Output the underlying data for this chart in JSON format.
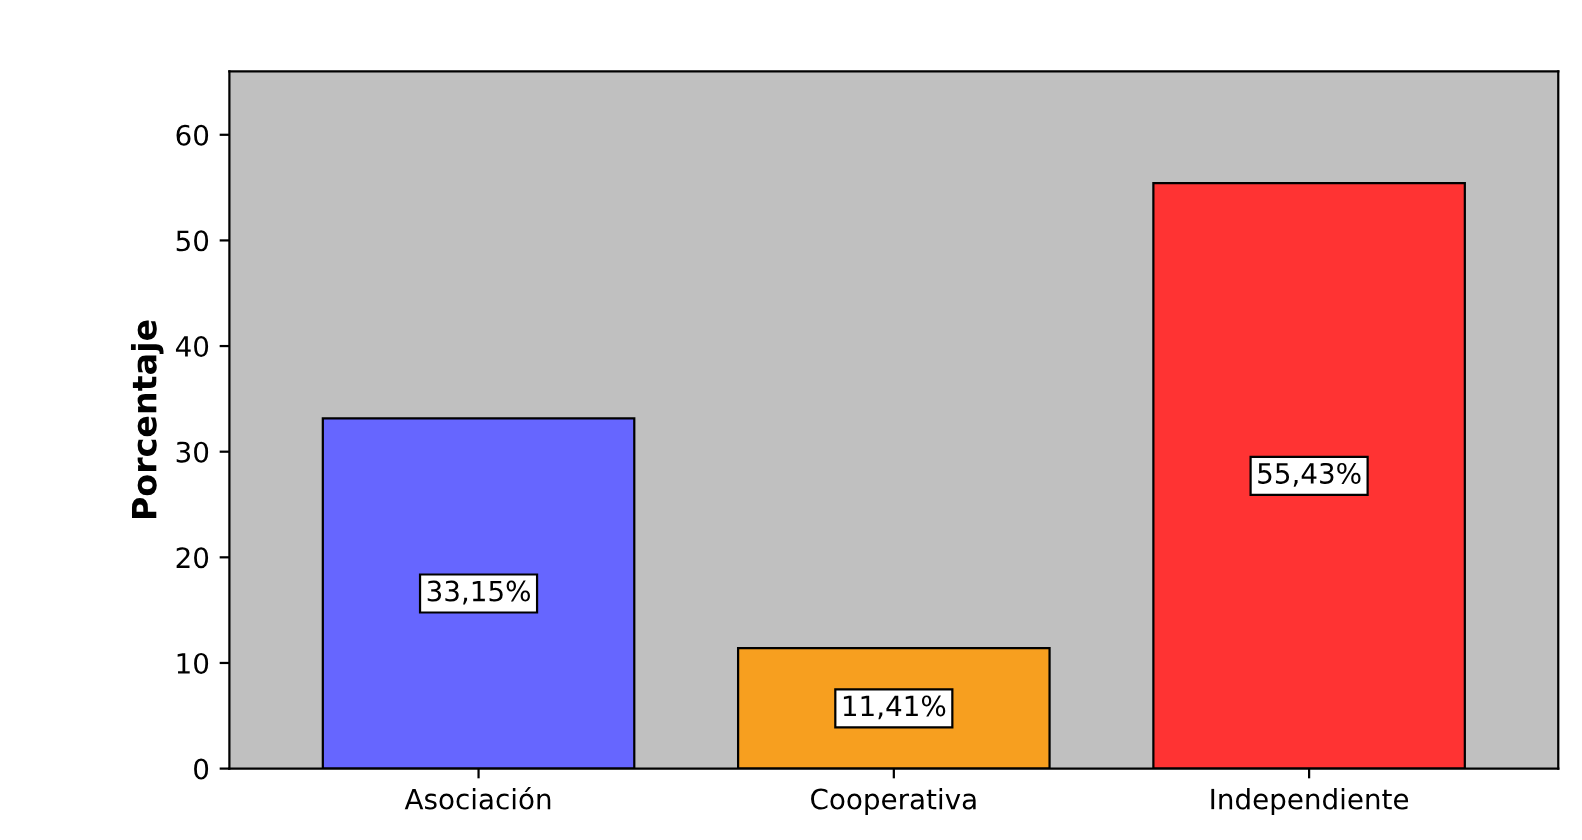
{
  "chart_data": {
    "type": "bar",
    "ylabel": "Porcentaje",
    "categories": [
      "Asociación",
      "Cooperativa",
      "Independiente"
    ],
    "values": [
      33.15,
      11.41,
      55.43
    ],
    "colors": [
      "#6666ff",
      "#f79f1f",
      "#ff3333"
    ],
    "value_labels": [
      "33,15%",
      "11,41%",
      "55,43%"
    ],
    "ylim": [
      0,
      66
    ],
    "yticks": [
      0,
      10,
      20,
      30,
      40,
      50,
      60
    ],
    "grid": false,
    "legend": false
  }
}
